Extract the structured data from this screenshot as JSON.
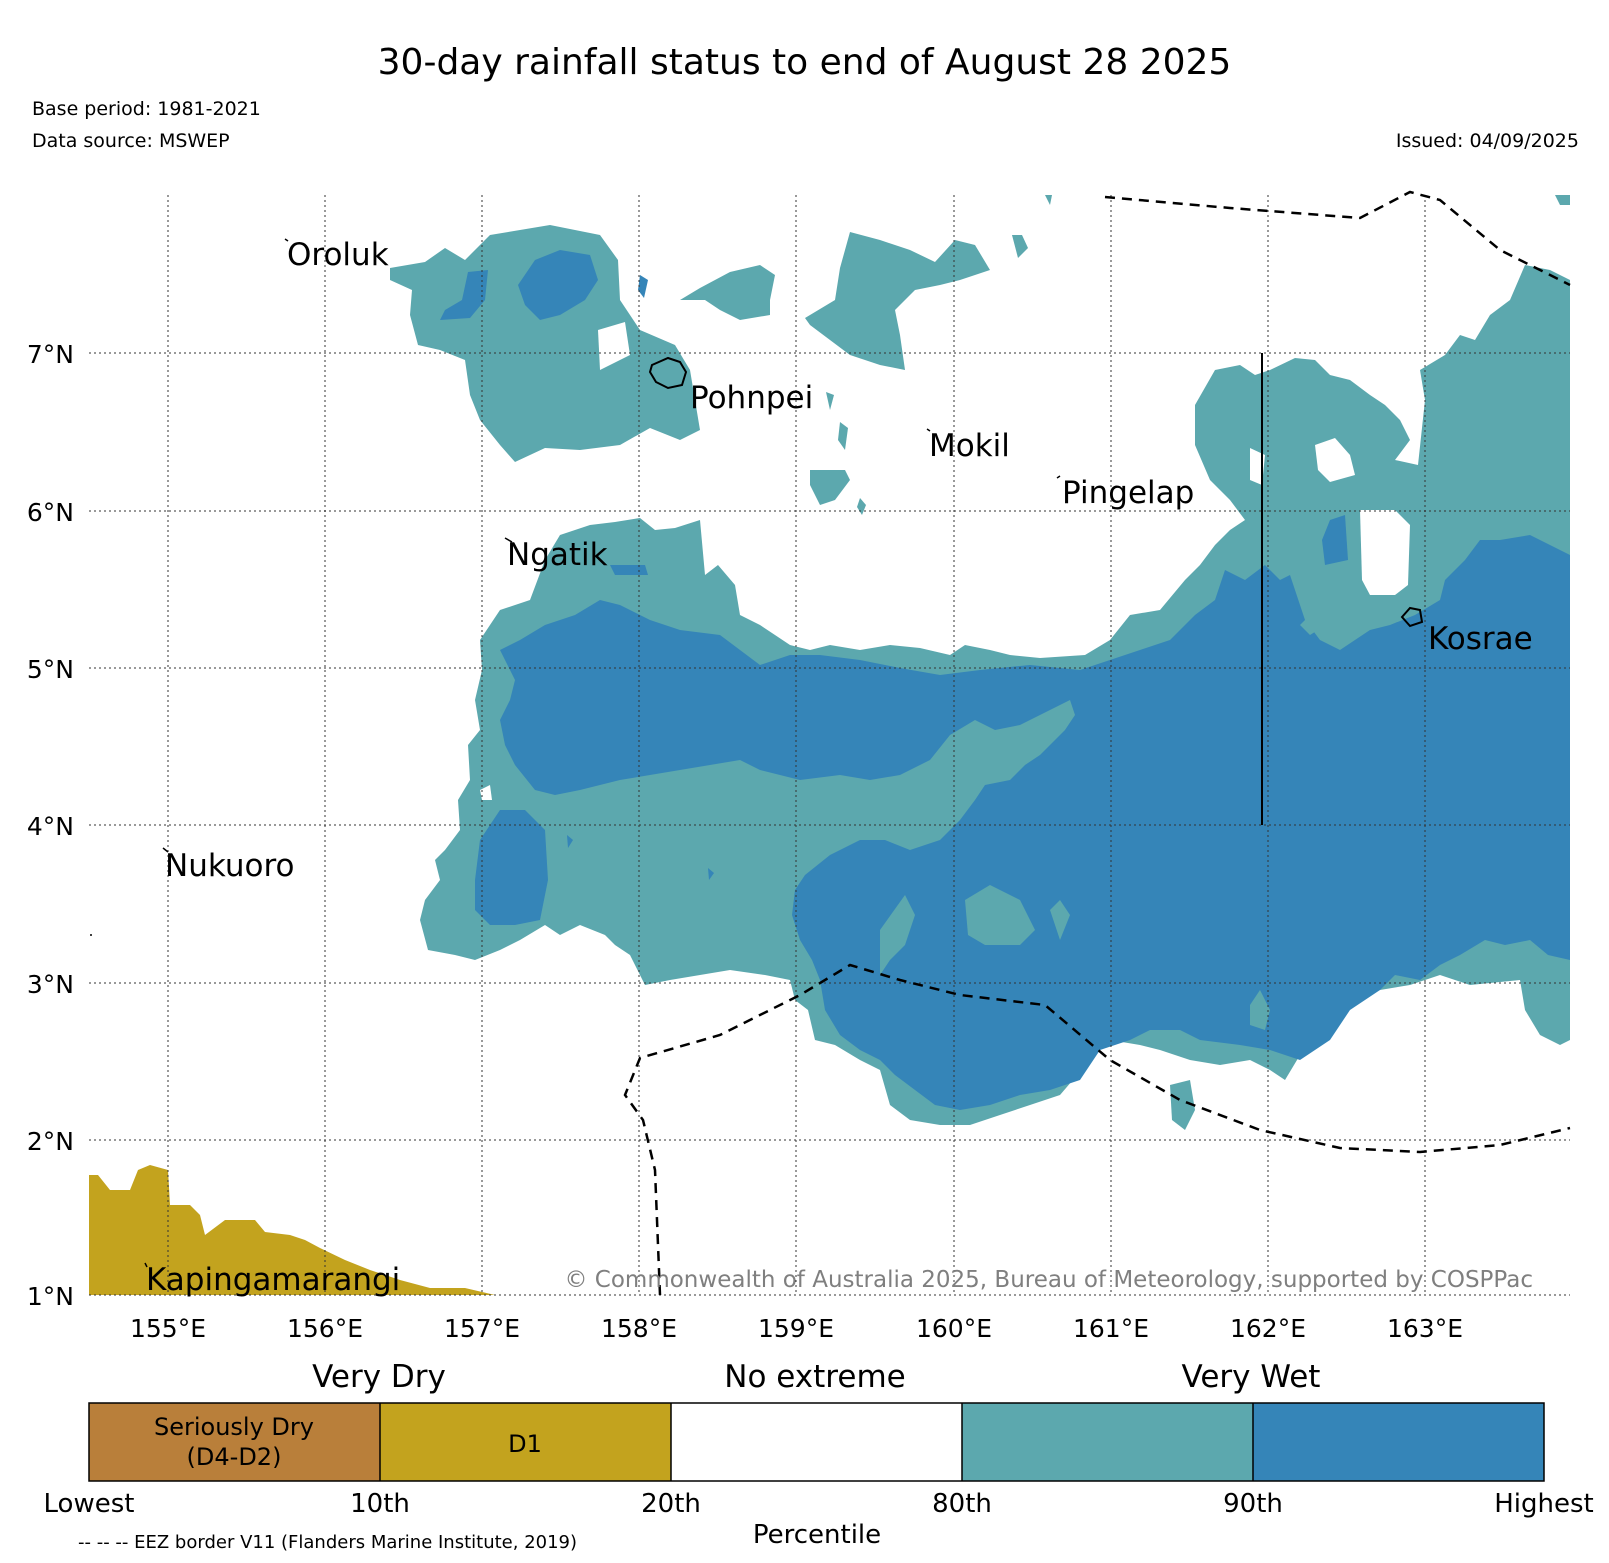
{
  "title": "30-day rainfall status to end of August 28 2025",
  "base_period": "Base period: 1981-2021",
  "data_source": "Data source: MSWEP",
  "issued": "Issued: 04/09/2025",
  "colors": {
    "seriously_dry": "#b97f3a",
    "d1": "#c3a31e",
    "no_extreme": "#ffffff",
    "wet_80_90": "#5ca8ae",
    "wet_90_plus": "#3585b8"
  },
  "places": [
    {
      "name": "Oroluk"
    },
    {
      "name": "Pohnpei"
    },
    {
      "name": "Mokil"
    },
    {
      "name": "Pingelap"
    },
    {
      "name": "Ngatik"
    },
    {
      "name": "Kosrae"
    },
    {
      "name": "Nukuoro"
    },
    {
      "name": "Kapingamarangi"
    }
  ],
  "lat_labels": [
    "7°N",
    "6°N",
    "5°N",
    "4°N",
    "3°N",
    "2°N",
    "1°N"
  ],
  "lon_labels": [
    "155°E",
    "156°E",
    "157°E",
    "158°E",
    "159°E",
    "160°E",
    "161°E",
    "162°E",
    "163°E"
  ],
  "copyright": "© Commonwealth of Australia 2025, Bureau of Meteorology, supported by COSPPac",
  "legend": {
    "categories": [
      "Very Dry",
      "No extreme",
      "Very Wet"
    ],
    "segments": [
      "Seriously Dry",
      "(D4-D2)",
      "D1",
      "",
      "",
      ""
    ],
    "percentiles": [
      "Lowest",
      "10th",
      "20th",
      "80th",
      "90th",
      "Highest"
    ],
    "axis_label": "Percentile"
  },
  "eez_note": "-- -- -- EEZ border V11 (Flanders Marine Institute, 2019)"
}
